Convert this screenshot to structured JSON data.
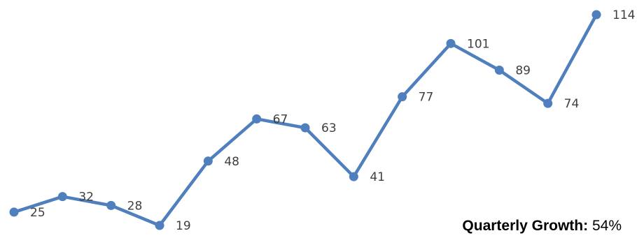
{
  "chart_data": {
    "type": "line",
    "x": [
      1,
      2,
      3,
      4,
      5,
      6,
      7,
      8,
      9,
      10,
      11,
      12,
      13
    ],
    "values": [
      25,
      32,
      28,
      19,
      48,
      67,
      63,
      41,
      77,
      101,
      89,
      74,
      114
    ],
    "data_labels": [
      "25",
      "32",
      "28",
      "19",
      "48",
      "67",
      "63",
      "41",
      "77",
      "101",
      "89",
      "74",
      "114"
    ],
    "ylim": [
      19,
      114
    ],
    "grid": false,
    "legend": "none",
    "title": "",
    "xlabel": "",
    "ylabel": "",
    "series_color": "#4f7fbd",
    "label_color": "#3f3f3f"
  },
  "summary": {
    "label": "Quarterly Growth:",
    "value": "54%"
  }
}
